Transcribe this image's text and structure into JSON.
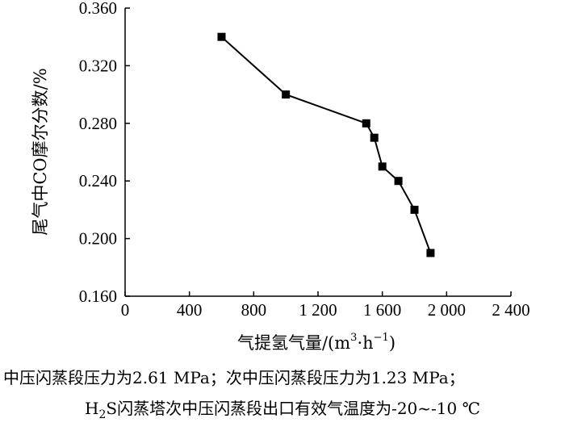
{
  "chart_data": {
    "type": "line",
    "x": [
      600,
      1000,
      1500,
      1550,
      1600,
      1700,
      1800,
      1900
    ],
    "y": [
      0.34,
      0.3,
      0.28,
      0.27,
      0.25,
      0.24,
      0.22,
      0.19
    ],
    "xlim": [
      0,
      2400
    ],
    "ylim": [
      0.16,
      0.36
    ],
    "xticks": [
      0,
      400,
      800,
      1200,
      1600,
      2000,
      2400
    ],
    "xtick_labels": [
      "0",
      "400",
      "800",
      "1 200",
      "1 600",
      "2 000",
      "2 400"
    ],
    "yticks": [
      0.16,
      0.2,
      0.24,
      0.28,
      0.32,
      0.36
    ],
    "ytick_labels": [
      "0.160",
      "0.200",
      "0.240",
      "0.280",
      "0.320",
      "0.360"
    ],
    "xlabel_main": "气提氢气量/(m",
    "xlabel_sup1": "3",
    "xlabel_mid": "·h",
    "xlabel_sup2": "−1",
    "xlabel_end": ")",
    "ylabel": "尾气中CO摩尔分数/%",
    "grid": false,
    "marker": "square",
    "color": "#000000"
  },
  "caption": {
    "line1": "中压闪蒸段压力为2.61 MPa；次中压闪蒸段压力为1.23 MPa；",
    "line2_prefix": "H",
    "line2_sub": "2",
    "line2_rest": "S闪蒸塔次中压闪蒸段出口有效气温度为-20~-10 ℃"
  }
}
